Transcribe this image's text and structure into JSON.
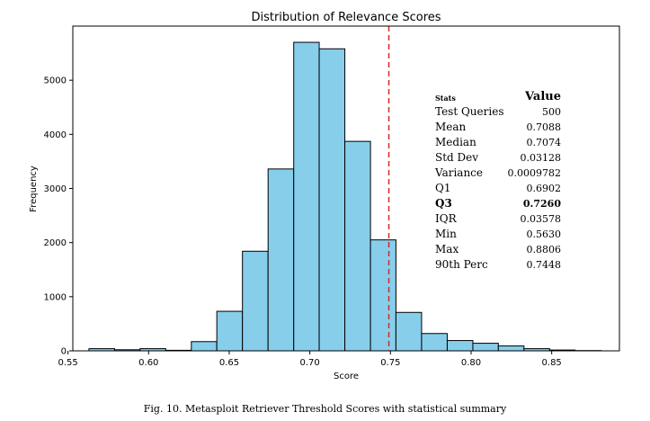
{
  "colors": {
    "bar_fill": "#87CEEB",
    "bar_stroke": "#000000",
    "threshold_line": "#d62728"
  },
  "caption": "Fig. 10.  Metasploit Retriever Threshold Scores with statistical summary",
  "chart_data": {
    "type": "bar",
    "title": "Distribution of Relevance Scores",
    "xlabel": "Score",
    "ylabel": "Frequency",
    "xlim": [
      0.553,
      0.892
    ],
    "ylim": [
      0,
      6000
    ],
    "xticks": [
      "0.55",
      "0.60",
      "0.65",
      "0.70",
      "0.75",
      "0.80",
      "0.85"
    ],
    "xtick_values": [
      0.55,
      0.6,
      0.65,
      0.7,
      0.75,
      0.8,
      0.85
    ],
    "yticks": [
      "0",
      "1000",
      "2000",
      "3000",
      "4000",
      "5000"
    ],
    "ytick_values": [
      0,
      1000,
      2000,
      3000,
      4000,
      5000
    ],
    "bins": [
      {
        "start": 0.563,
        "end": 0.5789,
        "count": 40
      },
      {
        "start": 0.5789,
        "end": 0.5947,
        "count": 20
      },
      {
        "start": 0.5947,
        "end": 0.6106,
        "count": 40
      },
      {
        "start": 0.6106,
        "end": 0.6265,
        "count": 10
      },
      {
        "start": 0.6265,
        "end": 0.6423,
        "count": 170
      },
      {
        "start": 0.6423,
        "end": 0.6582,
        "count": 730
      },
      {
        "start": 0.6582,
        "end": 0.6741,
        "count": 1840
      },
      {
        "start": 0.6741,
        "end": 0.69,
        "count": 3360
      },
      {
        "start": 0.69,
        "end": 0.7058,
        "count": 5700
      },
      {
        "start": 0.7058,
        "end": 0.7217,
        "count": 5580
      },
      {
        "start": 0.7217,
        "end": 0.7376,
        "count": 3870
      },
      {
        "start": 0.7376,
        "end": 0.7534,
        "count": 2050
      },
      {
        "start": 0.7534,
        "end": 0.7693,
        "count": 710
      },
      {
        "start": 0.7693,
        "end": 0.7852,
        "count": 320
      },
      {
        "start": 0.7852,
        "end": 0.8011,
        "count": 190
      },
      {
        "start": 0.8011,
        "end": 0.8169,
        "count": 140
      },
      {
        "start": 0.8169,
        "end": 0.8328,
        "count": 90
      },
      {
        "start": 0.8328,
        "end": 0.8487,
        "count": 40
      },
      {
        "start": 0.8487,
        "end": 0.8645,
        "count": 15
      },
      {
        "start": 0.8645,
        "end": 0.8806,
        "count": 5
      }
    ],
    "threshold": 0.749,
    "stats_table": {
      "header_label": "Stats",
      "header_value": "Value",
      "rows": [
        {
          "label": "Test Queries",
          "value": "500",
          "bold": false
        },
        {
          "label": "Mean",
          "value": "0.7088",
          "bold": false
        },
        {
          "label": "Median",
          "value": "0.7074",
          "bold": false
        },
        {
          "label": "Std Dev",
          "value": "0.03128",
          "bold": false
        },
        {
          "label": "Variance",
          "value": "0.0009782",
          "bold": false
        },
        {
          "label": "Q1",
          "value": "0.6902",
          "bold": false
        },
        {
          "label": "Q3",
          "value": "0.7260",
          "bold": true
        },
        {
          "label": "IQR",
          "value": "0.03578",
          "bold": false
        },
        {
          "label": "Min",
          "value": "0.5630",
          "bold": false
        },
        {
          "label": "Max",
          "value": "0.8806",
          "bold": false
        },
        {
          "label": "90th Perc",
          "value": "0.7448",
          "bold": false
        }
      ]
    }
  }
}
